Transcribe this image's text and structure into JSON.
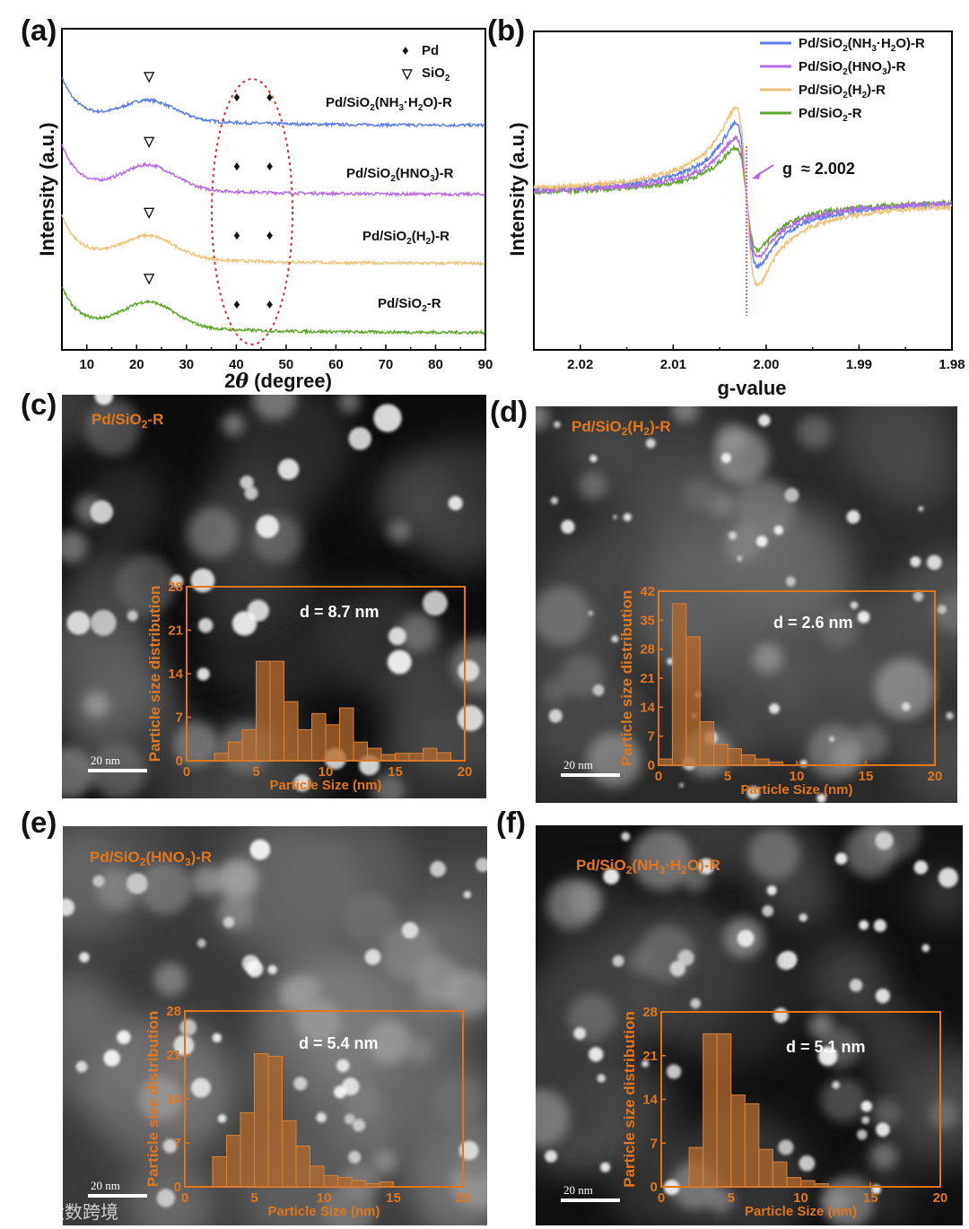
{
  "panel_labels": [
    "(a)",
    "(b)",
    "(c)",
    "(d)",
    "(e)",
    "(f)"
  ],
  "watermark": "大数跨境",
  "colors": {
    "nh3": "#5b7ce8",
    "hno3": "#b46ae8",
    "h2": "#eec27a",
    "plain": "#5ea52c",
    "orange": "#e0761c",
    "bar": "#b56a2c",
    "ellipse": "#d8322a"
  },
  "chart_data": [
    {
      "id": "xrd",
      "type": "line",
      "panel": "(a)",
      "xlabel_prefix": "2",
      "xlabel_symbol": "θ",
      "xlabel_suffix": " (degree)",
      "ylabel": "Intensity (a.u.)",
      "xlim": [
        5,
        90
      ],
      "xticks": [
        10,
        20,
        30,
        40,
        50,
        60,
        70,
        80,
        90
      ],
      "legend": [
        {
          "symbol": "♦",
          "label": "Pd"
        },
        {
          "symbol": "▽",
          "label_main": "SiO",
          "label_sub": "2"
        }
      ],
      "annotations": {
        "pd_peaks_deg": [
          40.1,
          46.7
        ],
        "sio2_peak_deg": 22.5,
        "highlight_range_deg": [
          37,
          50
        ]
      },
      "series": [
        {
          "key": "nh3",
          "label_parts": [
            "Pd/SiO",
            "2",
            "(NH",
            "3",
            "·H",
            "2",
            "O)-R"
          ],
          "offset": 3,
          "start": 0.95,
          "hump": 0.42,
          "tail": 0.0
        },
        {
          "key": "hno3",
          "label_parts": [
            "Pd/SiO",
            "2",
            "(HNO",
            "3",
            ")-R"
          ],
          "offset": 2,
          "start": 0.98,
          "hump": 0.52,
          "tail": 0.0
        },
        {
          "key": "h2",
          "label_parts": [
            "Pd/SiO",
            "2",
            "(H",
            "2",
            ")-R"
          ],
          "offset": 1,
          "start": 0.95,
          "hump": 0.48,
          "tail": 0.0
        },
        {
          "key": "plain",
          "label_parts": [
            "Pd/SiO",
            "2",
            "-R"
          ],
          "offset": 0,
          "start": 0.9,
          "hump": 0.55,
          "tail": 0.0
        }
      ]
    },
    {
      "id": "epr",
      "type": "line",
      "panel": "(b)",
      "xlabel": "g-value",
      "ylabel": "Intensity (a.u.)",
      "xlim": [
        2.025,
        1.98
      ],
      "xticks": [
        "2.02",
        "2.01",
        "2.00",
        "1.99",
        "1.98"
      ],
      "xtick_values": [
        2.02,
        2.01,
        2.0,
        1.99,
        1.98
      ],
      "annotation": "g  ≈ 2.002",
      "g_center": 2.0021,
      "series": [
        {
          "key": "nh3",
          "label_parts": [
            "Pd/SiO",
            "2",
            "(NH",
            "3",
            "·H",
            "2",
            "O)-R"
          ],
          "pos_peak": 0.62,
          "neg_peak": -0.58
        },
        {
          "key": "hno3",
          "label_parts": [
            "Pd/SiO",
            "2",
            "(HNO",
            "3",
            ")-R"
          ],
          "pos_peak": 0.5,
          "neg_peak": -0.5
        },
        {
          "key": "h2",
          "label_parts": [
            "Pd/SiO",
            "2",
            "(H",
            "2",
            ")-R"
          ],
          "pos_peak": 0.75,
          "neg_peak": -0.74
        },
        {
          "key": "plain",
          "label_parts": [
            "Pd/SiO",
            "2",
            "-R"
          ],
          "pos_peak": 0.42,
          "neg_peak": -0.44
        }
      ]
    },
    {
      "id": "psd_c",
      "type": "bar",
      "panel": "(c)",
      "sample_parts": [
        "Pd/SiO",
        "2",
        "-R"
      ],
      "d_label": "d = 8.7 nm",
      "xlabel": "Particle Size (nm)",
      "ylabel": "Particle size distribution",
      "xlim": [
        0,
        20
      ],
      "ylim": [
        0,
        28
      ],
      "yticks": [
        0,
        7,
        14,
        21,
        28
      ],
      "xticks": [
        0,
        5,
        10,
        15,
        20
      ],
      "bin_width": 1,
      "bins": [
        2.5,
        3.5,
        4.5,
        5.5,
        6.5,
        7.5,
        8.5,
        9.5,
        10.5,
        11.5,
        12.5,
        13.5,
        14.5,
        15.5,
        16.5,
        17.5,
        18.5
      ],
      "values": [
        1.2,
        3,
        5,
        16,
        16,
        9.5,
        5,
        7.6,
        5.8,
        8.5,
        3,
        2,
        1,
        1.2,
        1.2,
        2,
        1.3
      ],
      "scale_bar": "20 nm"
    },
    {
      "id": "psd_d",
      "type": "bar",
      "panel": "(d)",
      "sample_parts": [
        "Pd/SiO",
        "2",
        "(H",
        "2",
        ")-R"
      ],
      "d_label": "d = 2.6 nm",
      "xlabel": "Particle Size (nm)",
      "ylabel": "Particle size distribution",
      "xlim": [
        0,
        20
      ],
      "ylim": [
        0,
        42
      ],
      "yticks": [
        0,
        7,
        14,
        21,
        28,
        35,
        42
      ],
      "xticks": [
        0,
        5,
        10,
        15,
        20
      ],
      "bin_width": 1,
      "bins": [
        0.5,
        1.5,
        2.5,
        3.5,
        4.5,
        5.5,
        6.5,
        7.5,
        8.5
      ],
      "values": [
        1.5,
        39,
        31,
        10.5,
        5,
        4,
        2.5,
        1.5,
        0.8
      ],
      "scale_bar": "20 nm"
    },
    {
      "id": "psd_e",
      "type": "bar",
      "panel": "(e)",
      "sample_parts": [
        "Pd/SiO",
        "2",
        "(HNO",
        "3",
        ")-R"
      ],
      "d_label": "d = 5.4 nm",
      "xlabel": "Particle Size (nm)",
      "ylabel": "Particle size distribution",
      "xlim": [
        0,
        20
      ],
      "ylim": [
        0,
        28
      ],
      "yticks": [
        0,
        7,
        14,
        21,
        28
      ],
      "xticks": [
        0,
        5,
        10,
        15,
        20
      ],
      "bin_width": 1,
      "bins": [
        2.5,
        3.5,
        4.5,
        5.5,
        6.5,
        7.5,
        8.5,
        9.5,
        10.5,
        11.5,
        12.5,
        13.5,
        14.5
      ],
      "values": [
        4.8,
        8.2,
        11.8,
        21.2,
        20.8,
        10.5,
        6.5,
        3.3,
        1.8,
        1.5,
        1,
        0.5,
        0.8
      ],
      "scale_bar": "20 nm"
    },
    {
      "id": "psd_f",
      "type": "bar",
      "panel": "(f)",
      "sample_parts": [
        "Pd/SiO",
        "2",
        "(NH",
        "3",
        "·H",
        "2",
        "O)-R"
      ],
      "d_label": "d = 5.1 nm",
      "xlabel": "Particle Size (nm)",
      "ylabel": "Particle size distribution",
      "xlim": [
        0,
        20
      ],
      "ylim": [
        0,
        28
      ],
      "yticks": [
        0,
        7,
        14,
        21,
        28
      ],
      "xticks": [
        0,
        5,
        10,
        15,
        20
      ],
      "bin_width": 1,
      "bins": [
        2.5,
        3.5,
        4.5,
        5.5,
        6.5,
        7.5,
        8.5,
        9.5,
        10.5,
        11.5
      ],
      "values": [
        6.3,
        24.5,
        24.5,
        14.7,
        13.3,
        6,
        4,
        1.5,
        1,
        0.5
      ],
      "scale_bar": "20 nm"
    }
  ]
}
